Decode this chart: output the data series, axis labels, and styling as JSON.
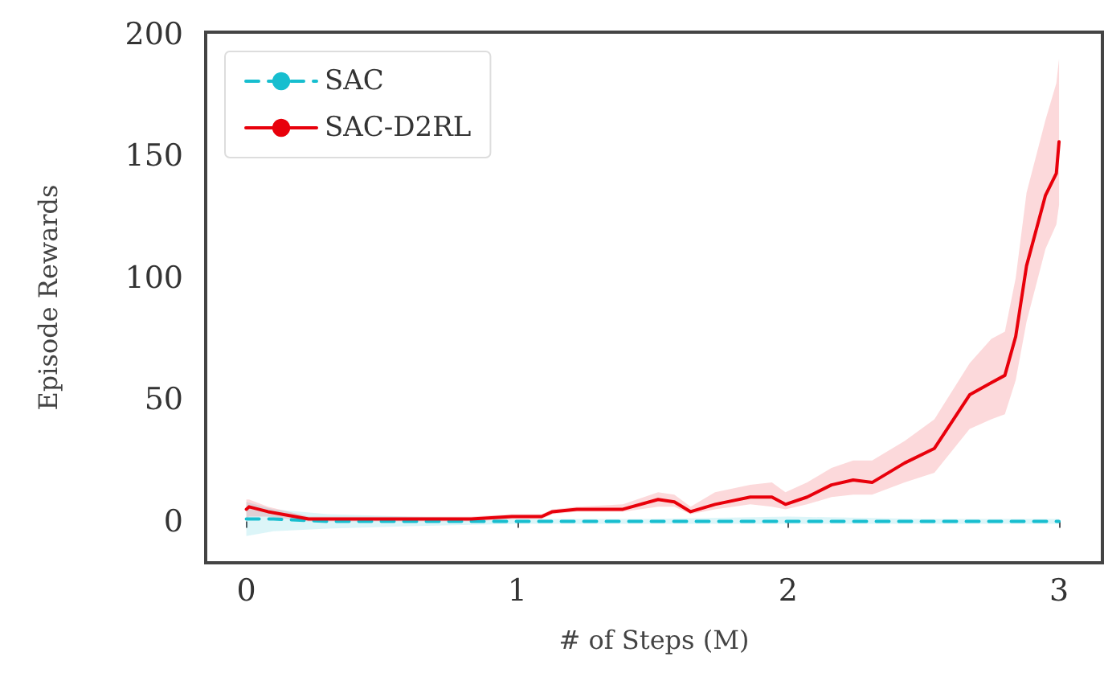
{
  "chart_data": {
    "type": "line",
    "xlabel": "# of Steps (M)",
    "ylabel": "Episode Rewards",
    "xlim": [
      -0.15,
      3.16
    ],
    "ylim": [
      -17,
      201
    ],
    "xticks": [
      0,
      1,
      2,
      3
    ],
    "yticks": [
      0,
      50,
      100,
      150,
      200
    ],
    "grid": false,
    "legend": "top left",
    "marker": "none",
    "series": [
      {
        "name": "SAC",
        "color": "#17becf",
        "line_style": "dashed",
        "x": [
          0,
          0.1,
          0.3,
          0.6,
          1.0,
          1.5,
          2.0,
          2.5,
          3.0
        ],
        "values": [
          1,
          1,
          0,
          0,
          0,
          0,
          0,
          0,
          0
        ],
        "lower": [
          -6,
          -4,
          -3,
          -2,
          -1,
          -1,
          -1,
          -1,
          -1
        ],
        "upper": [
          8,
          5,
          3,
          2,
          1,
          1,
          2,
          1,
          1
        ]
      },
      {
        "name": "SAC-D2RL",
        "color": "#e8000b",
        "line_style": "solid",
        "x": [
          0,
          0.01,
          0.08,
          0.23,
          0.45,
          0.83,
          0.98,
          1.09,
          1.13,
          1.22,
          1.39,
          1.52,
          1.58,
          1.64,
          1.73,
          1.86,
          1.94,
          1.99,
          2.07,
          2.16,
          2.24,
          2.31,
          2.43,
          2.54,
          2.67,
          2.75,
          2.8,
          2.84,
          2.88,
          2.95,
          2.99,
          3.0
        ],
        "values": [
          5,
          6,
          4,
          1,
          1,
          1,
          2,
          2,
          4,
          5,
          5,
          9,
          8,
          4,
          7,
          10,
          10,
          7,
          10,
          15,
          17,
          16,
          24,
          30,
          52,
          57,
          60,
          76,
          105,
          134,
          143,
          156
        ],
        "lower": [
          1,
          2,
          2,
          0,
          0,
          0,
          1,
          1,
          3,
          4,
          4,
          6,
          6,
          3,
          5,
          7,
          6,
          5,
          7,
          10,
          11,
          11,
          16,
          20,
          38,
          42,
          44,
          58,
          82,
          112,
          122,
          130
        ],
        "upper": [
          9,
          9,
          6,
          2,
          2,
          2,
          3,
          3,
          5,
          6,
          7,
          12,
          11,
          6,
          12,
          15,
          16,
          12,
          16,
          22,
          25,
          25,
          33,
          42,
          65,
          75,
          78,
          100,
          135,
          165,
          180,
          190
        ]
      }
    ]
  }
}
